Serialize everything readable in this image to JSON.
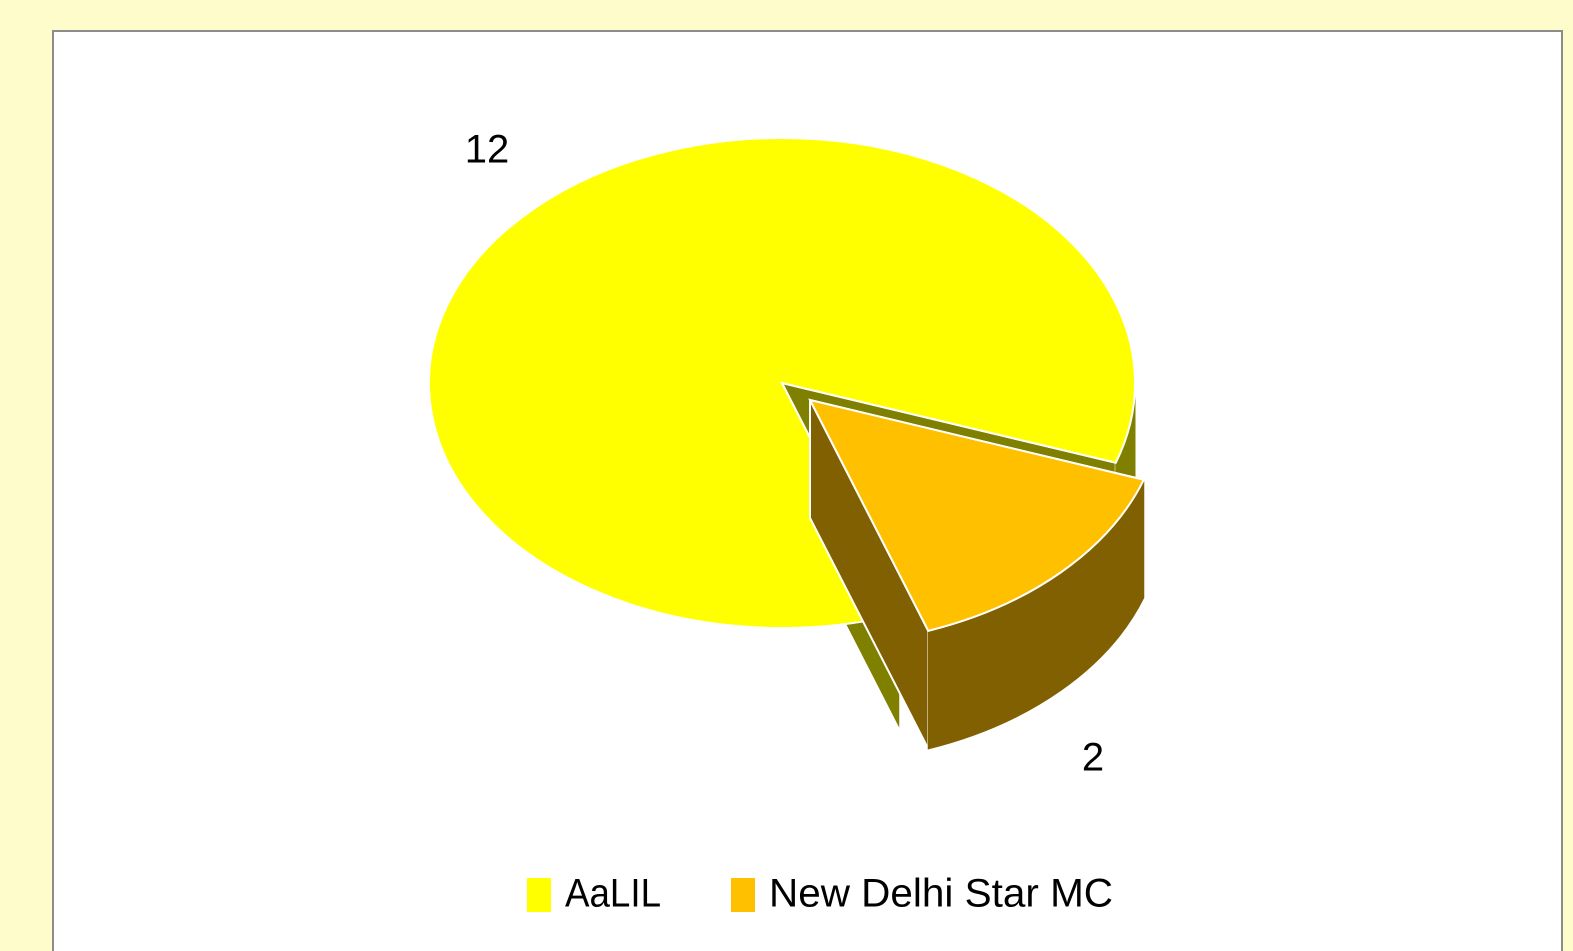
{
  "chart_data": {
    "type": "pie",
    "categories": [
      "AaLIL",
      "New Delhi Star MC"
    ],
    "values": [
      12,
      2
    ],
    "colors": [
      "#ffff00",
      "#ffc000"
    ],
    "legend": "bottom",
    "data_labels": true
  }
}
